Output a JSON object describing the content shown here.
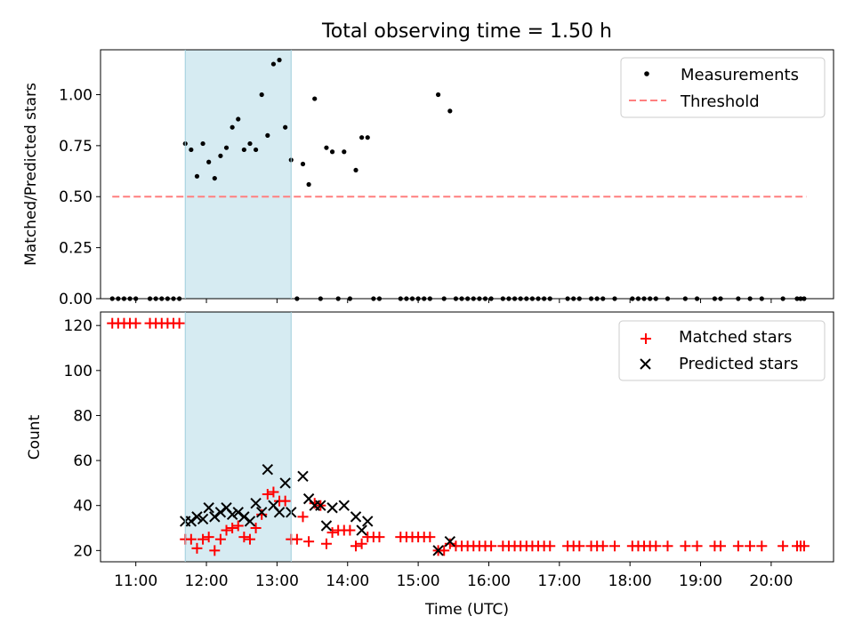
{
  "chart_data": [
    {
      "type": "scatter",
      "title": "Total observing time = 1.50 h",
      "ylabel": "Matched/Predicted stars",
      "xlabel": "",
      "ylim": [
        0,
        1.22
      ],
      "xlim": [
        "10:30",
        "20:53"
      ],
      "yticks": [
        0.0,
        0.25,
        0.5,
        0.75,
        1.0
      ],
      "ytick_labels": [
        "0.00",
        "0.25",
        "0.50",
        "0.75",
        "1.00"
      ],
      "highlight_span": [
        "11:42",
        "13:12"
      ],
      "highlight_color": "#add8e6",
      "legend": {
        "position": "top-right",
        "entries": [
          "Measurements",
          "Threshold"
        ]
      },
      "threshold": {
        "name": "Threshold",
        "value": 0.5,
        "x_start": "10:40",
        "x_end": "20:30",
        "color": "#ff7f7f",
        "style": "dashed"
      },
      "series": [
        {
          "name": "Measurements",
          "color": "#000000",
          "marker": "dot",
          "points": [
            [
              "10:40",
              0
            ],
            [
              "10:45",
              0
            ],
            [
              "10:50",
              0
            ],
            [
              "10:55",
              0
            ],
            [
              "11:00",
              0
            ],
            [
              "11:12",
              0
            ],
            [
              "11:17",
              0
            ],
            [
              "11:22",
              0
            ],
            [
              "11:27",
              0
            ],
            [
              "11:32",
              0
            ],
            [
              "11:37",
              0
            ],
            [
              "11:42",
              0.76
            ],
            [
              "11:47",
              0.73
            ],
            [
              "11:52",
              0.6
            ],
            [
              "11:57",
              0.76
            ],
            [
              "12:02",
              0.67
            ],
            [
              "12:07",
              0.59
            ],
            [
              "12:12",
              0.7
            ],
            [
              "12:17",
              0.74
            ],
            [
              "12:22",
              0.84
            ],
            [
              "12:27",
              0.88
            ],
            [
              "12:32",
              0.73
            ],
            [
              "12:37",
              0.76
            ],
            [
              "12:42",
              0.73
            ],
            [
              "12:47",
              1.0
            ],
            [
              "12:52",
              0.8
            ],
            [
              "12:57",
              1.15
            ],
            [
              "13:02",
              1.17
            ],
            [
              "13:07",
              0.84
            ],
            [
              "13:12",
              0.68
            ],
            [
              "13:17",
              0
            ],
            [
              "13:22",
              0.66
            ],
            [
              "13:27",
              0.56
            ],
            [
              "13:32",
              0.98
            ],
            [
              "13:37",
              0
            ],
            [
              "13:42",
              0.74
            ],
            [
              "13:47",
              0.72
            ],
            [
              "13:52",
              0
            ],
            [
              "13:57",
              0.72
            ],
            [
              "14:02",
              0
            ],
            [
              "14:07",
              0.63
            ],
            [
              "14:12",
              0.79
            ],
            [
              "14:17",
              0.79
            ],
            [
              "14:22",
              0
            ],
            [
              "14:27",
              0
            ],
            [
              "14:45",
              0
            ],
            [
              "14:50",
              0
            ],
            [
              "14:55",
              0
            ],
            [
              "15:00",
              0
            ],
            [
              "15:05",
              0
            ],
            [
              "15:10",
              0
            ],
            [
              "15:17",
              1.0
            ],
            [
              "15:22",
              0
            ],
            [
              "15:27",
              0.92
            ],
            [
              "15:32",
              0
            ],
            [
              "15:37",
              0
            ],
            [
              "15:42",
              0
            ],
            [
              "15:47",
              0
            ],
            [
              "15:52",
              0
            ],
            [
              "15:57",
              0
            ],
            [
              "16:02",
              0
            ],
            [
              "16:12",
              0
            ],
            [
              "16:17",
              0
            ],
            [
              "16:22",
              0
            ],
            [
              "16:27",
              0
            ],
            [
              "16:32",
              0
            ],
            [
              "16:37",
              0
            ],
            [
              "16:42",
              0
            ],
            [
              "16:47",
              0
            ],
            [
              "16:52",
              0
            ],
            [
              "17:07",
              0
            ],
            [
              "17:12",
              0
            ],
            [
              "17:17",
              0
            ],
            [
              "17:27",
              0
            ],
            [
              "17:32",
              0
            ],
            [
              "17:37",
              0
            ],
            [
              "17:47",
              0
            ],
            [
              "18:02",
              0
            ],
            [
              "18:07",
              0
            ],
            [
              "18:12",
              0
            ],
            [
              "18:17",
              0
            ],
            [
              "18:22",
              0
            ],
            [
              "18:32",
              0
            ],
            [
              "18:47",
              0
            ],
            [
              "18:57",
              0
            ],
            [
              "19:12",
              0
            ],
            [
              "19:17",
              0
            ],
            [
              "19:32",
              0
            ],
            [
              "19:42",
              0
            ],
            [
              "19:52",
              0
            ],
            [
              "20:10",
              0
            ],
            [
              "20:22",
              0
            ],
            [
              "20:25",
              0
            ],
            [
              "20:28",
              0
            ]
          ]
        }
      ]
    },
    {
      "type": "scatter",
      "title": "",
      "ylabel": "Count",
      "xlabel": "Time (UTC)",
      "ylim": [
        15,
        126
      ],
      "xlim": [
        "10:30",
        "20:53"
      ],
      "yticks": [
        20,
        40,
        60,
        80,
        100,
        120
      ],
      "ytick_labels": [
        "20",
        "40",
        "60",
        "80",
        "100",
        "120"
      ],
      "xticks": [
        "11:00",
        "12:00",
        "13:00",
        "14:00",
        "15:00",
        "16:00",
        "17:00",
        "18:00",
        "19:00",
        "20:00"
      ],
      "highlight_span": [
        "11:42",
        "13:12"
      ],
      "highlight_color": "#add8e6",
      "legend": {
        "position": "top-right",
        "entries": [
          "Matched stars",
          "Predicted stars"
        ]
      },
      "series": [
        {
          "name": "Matched stars",
          "color": "#ff0000",
          "marker": "plus",
          "points": [
            [
              "10:40",
              121
            ],
            [
              "10:45",
              121
            ],
            [
              "10:50",
              121
            ],
            [
              "10:55",
              121
            ],
            [
              "11:00",
              121
            ],
            [
              "11:12",
              121
            ],
            [
              "11:17",
              121
            ],
            [
              "11:22",
              121
            ],
            [
              "11:27",
              121
            ],
            [
              "11:32",
              121
            ],
            [
              "11:37",
              121
            ],
            [
              "11:42",
              25
            ],
            [
              "11:47",
              25
            ],
            [
              "11:52",
              21
            ],
            [
              "11:57",
              25
            ],
            [
              "12:02",
              26
            ],
            [
              "12:07",
              20
            ],
            [
              "12:12",
              25
            ],
            [
              "12:17",
              29
            ],
            [
              "12:22",
              30
            ],
            [
              "12:27",
              31
            ],
            [
              "12:32",
              26
            ],
            [
              "12:37",
              25
            ],
            [
              "12:42",
              30
            ],
            [
              "12:47",
              36
            ],
            [
              "12:52",
              45
            ],
            [
              "12:57",
              46
            ],
            [
              "13:02",
              42
            ],
            [
              "13:07",
              42
            ],
            [
              "13:12",
              25
            ],
            [
              "13:17",
              25
            ],
            [
              "13:22",
              35
            ],
            [
              "13:27",
              24
            ],
            [
              "13:32",
              41
            ],
            [
              "13:37",
              40
            ],
            [
              "13:42",
              23
            ],
            [
              "13:47",
              28
            ],
            [
              "13:52",
              29
            ],
            [
              "13:57",
              29
            ],
            [
              "14:02",
              29
            ],
            [
              "14:07",
              22
            ],
            [
              "14:12",
              23
            ],
            [
              "14:17",
              26
            ],
            [
              "14:22",
              26
            ],
            [
              "14:27",
              26
            ],
            [
              "14:45",
              26
            ],
            [
              "14:50",
              26
            ],
            [
              "14:55",
              26
            ],
            [
              "15:00",
              26
            ],
            [
              "15:05",
              26
            ],
            [
              "15:10",
              26
            ],
            [
              "15:17",
              20
            ],
            [
              "15:22",
              20
            ],
            [
              "15:27",
              23
            ],
            [
              "15:32",
              22
            ],
            [
              "15:37",
              22
            ],
            [
              "15:42",
              22
            ],
            [
              "15:47",
              22
            ],
            [
              "15:52",
              22
            ],
            [
              "15:57",
              22
            ],
            [
              "16:02",
              22
            ],
            [
              "16:12",
              22
            ],
            [
              "16:17",
              22
            ],
            [
              "16:22",
              22
            ],
            [
              "16:27",
              22
            ],
            [
              "16:32",
              22
            ],
            [
              "16:37",
              22
            ],
            [
              "16:42",
              22
            ],
            [
              "16:47",
              22
            ],
            [
              "16:52",
              22
            ],
            [
              "17:07",
              22
            ],
            [
              "17:12",
              22
            ],
            [
              "17:17",
              22
            ],
            [
              "17:27",
              22
            ],
            [
              "17:32",
              22
            ],
            [
              "17:37",
              22
            ],
            [
              "17:47",
              22
            ],
            [
              "18:02",
              22
            ],
            [
              "18:07",
              22
            ],
            [
              "18:12",
              22
            ],
            [
              "18:17",
              22
            ],
            [
              "18:22",
              22
            ],
            [
              "18:32",
              22
            ],
            [
              "18:47",
              22
            ],
            [
              "18:57",
              22
            ],
            [
              "19:12",
              22
            ],
            [
              "19:17",
              22
            ],
            [
              "19:32",
              22
            ],
            [
              "19:42",
              22
            ],
            [
              "19:52",
              22
            ],
            [
              "20:10",
              22
            ],
            [
              "20:22",
              22
            ],
            [
              "20:25",
              22
            ],
            [
              "20:28",
              22
            ]
          ]
        },
        {
          "name": "Predicted stars",
          "color": "#000000",
          "marker": "x",
          "points": [
            [
              "11:42",
              33
            ],
            [
              "11:47",
              33
            ],
            [
              "11:52",
              35
            ],
            [
              "11:57",
              34
            ],
            [
              "12:02",
              39
            ],
            [
              "12:07",
              35
            ],
            [
              "12:12",
              37
            ],
            [
              "12:17",
              39
            ],
            [
              "12:22",
              36
            ],
            [
              "12:27",
              37
            ],
            [
              "12:32",
              35
            ],
            [
              "12:37",
              33
            ],
            [
              "12:42",
              41
            ],
            [
              "12:47",
              37
            ],
            [
              "12:52",
              56
            ],
            [
              "12:57",
              40
            ],
            [
              "13:02",
              37
            ],
            [
              "13:07",
              50
            ],
            [
              "13:12",
              37
            ],
            [
              "13:22",
              53
            ],
            [
              "13:27",
              43
            ],
            [
              "13:32",
              40
            ],
            [
              "13:37",
              40
            ],
            [
              "13:42",
              31
            ],
            [
              "13:47",
              39
            ],
            [
              "13:57",
              40
            ],
            [
              "14:07",
              35
            ],
            [
              "14:12",
              29
            ],
            [
              "14:17",
              33
            ],
            [
              "15:17",
              20
            ],
            [
              "15:27",
              24
            ]
          ]
        }
      ]
    }
  ]
}
